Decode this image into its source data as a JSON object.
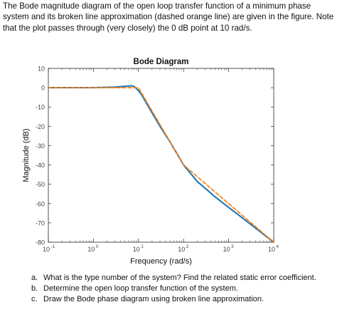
{
  "problem": {
    "statement": "The Bode magnitude diagram of the open loop transfer function of a minimum phase system and its broken line approximation (dashed orange line) are given in the figure. Note that the plot passes through (very closely) the 0 dB point at 10 rad/s.",
    "questions": [
      {
        "label": "a.",
        "text": "What is the type number of the system? Find the related static error coefficient."
      },
      {
        "label": "b.",
        "text": "Determine the open loop transfer function of the system."
      },
      {
        "label": "c.",
        "text": "Draw the Bode phase diagram using broken line approximation."
      }
    ]
  },
  "chart_data": {
    "type": "line",
    "title": "Bode Diagram",
    "xlabel": "Frequency  (rad/s)",
    "ylabel": "Magnitude (dB)",
    "x_scale": "log",
    "xlim": [
      0.1,
      10000
    ],
    "ylim": [
      -80,
      10
    ],
    "x_ticks": [
      0.1,
      1,
      10,
      100,
      1000,
      10000
    ],
    "x_tick_labels": [
      {
        "base": "10",
        "exp": "-1"
      },
      {
        "base": "10",
        "exp": "0"
      },
      {
        "base": "10",
        "exp": "1"
      },
      {
        "base": "10",
        "exp": "2"
      },
      {
        "base": "10",
        "exp": "3"
      },
      {
        "base": "10",
        "exp": "4"
      }
    ],
    "y_ticks": [
      10,
      0,
      -10,
      -20,
      -30,
      -40,
      -50,
      -60,
      -70,
      -80
    ],
    "grid": false,
    "series": [
      {
        "style": "solid",
        "color": "#1f77b4",
        "x": [
          0.1,
          1,
          3,
          5,
          7,
          8,
          9,
          10,
          12,
          15,
          20,
          30,
          50,
          100,
          200,
          500,
          1000,
          3000,
          10000
        ],
        "y": [
          0,
          0,
          0.3,
          0.7,
          1.0,
          0.6,
          -0.5,
          -1.5,
          -4,
          -8,
          -13,
          -20,
          -28,
          -40,
          -48.5,
          -56.5,
          -62,
          -70.5,
          -80
        ]
      },
      {
        "style": "dashed",
        "color": "#ff7f0e",
        "x": [
          0.1,
          10,
          100,
          1000,
          10000
        ],
        "y": [
          0,
          0,
          -40,
          -60,
          -80
        ]
      }
    ]
  }
}
